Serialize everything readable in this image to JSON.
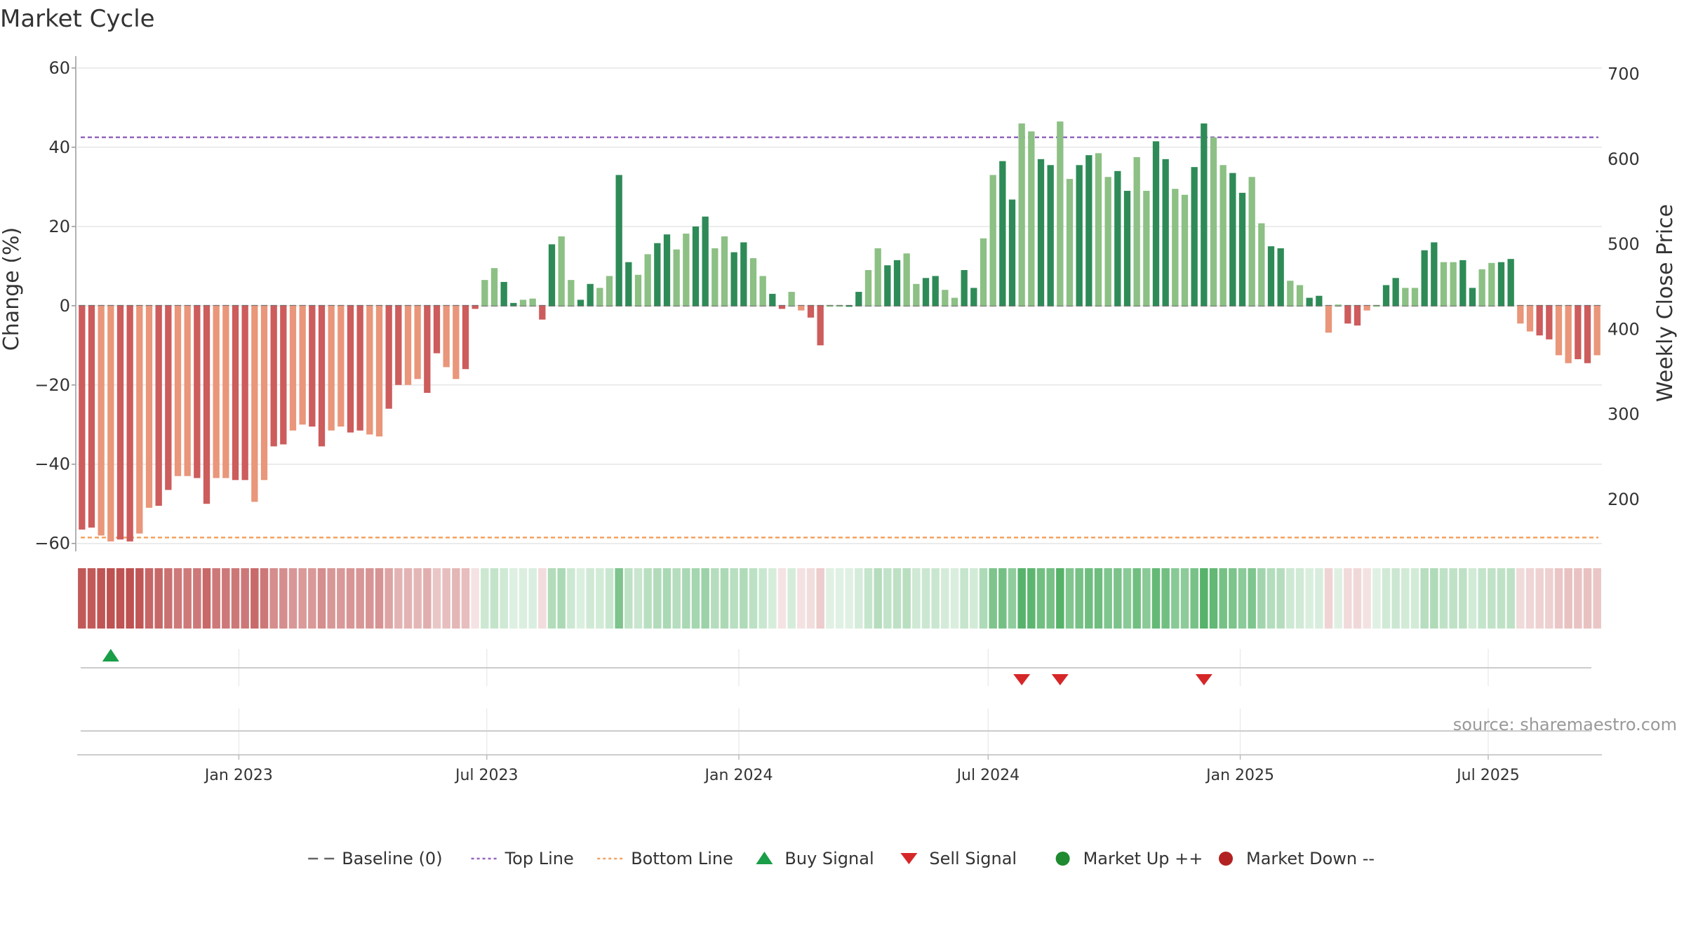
{
  "chart_data": {
    "type": "bar",
    "title": "Market Cycle",
    "ylabel": "Change (%)",
    "y2label": "Weekly Close Price",
    "ylim": [
      -62,
      63
    ],
    "y_ticks": [
      60,
      40,
      20,
      0,
      -20,
      -40,
      -60
    ],
    "y_tick_labels": [
      "60",
      "40",
      "20",
      "0",
      "−20",
      "−40",
      "−60"
    ],
    "y2_ticks": [
      700,
      600,
      500,
      400,
      300,
      200
    ],
    "y2_tick_labels": [
      "700",
      "600",
      "500",
      "400",
      "300",
      "200"
    ],
    "y2lim": [
      139,
      721
    ],
    "top_line": 42.5,
    "bottom_line": -58.5,
    "x_start": "2022-09-05",
    "x_end": "2025-09-22",
    "x_ticks": [
      {
        "date": "2023-01-01",
        "label": "Jan 2023"
      },
      {
        "date": "2023-07-01",
        "label": "Jul 2023"
      },
      {
        "date": "2024-01-01",
        "label": "Jan 2024"
      },
      {
        "date": "2024-07-01",
        "label": "Jul 2024"
      },
      {
        "date": "2025-01-01",
        "label": "Jan 2025"
      },
      {
        "date": "2025-07-01",
        "label": "Jul 2025"
      }
    ],
    "values": [
      -56.5,
      -56,
      -58,
      -59.5,
      -59,
      -59.5,
      -57.5,
      -51,
      -50.5,
      -46.5,
      -43,
      -43,
      -43.5,
      -50,
      -43.5,
      -43.5,
      -44,
      -44,
      -49.5,
      -44,
      -35.5,
      -35,
      -31.5,
      -30,
      -30.5,
      -35.5,
      -31.5,
      -30.5,
      -32,
      -31.5,
      -32.5,
      -33,
      -26,
      -20,
      -20,
      -18.5,
      -22,
      -12,
      -15.5,
      -18.5,
      -16,
      -0.8,
      6.5,
      9.5,
      6,
      0.7,
      1.5,
      1.8,
      -3.5,
      15.5,
      17.5,
      6.5,
      1.5,
      5.5,
      4.5,
      7.5,
      33,
      11,
      7.8,
      13,
      15.8,
      18,
      14.2,
      18.2,
      20,
      22.5,
      14.5,
      17.5,
      13.5,
      16,
      12,
      7.5,
      3,
      -0.8,
      3.5,
      -1.2,
      -3,
      -10,
      0,
      0,
      0,
      3.5,
      9,
      14.5,
      10.2,
      11.5,
      13.2,
      5.5,
      7,
      7.5,
      4,
      2,
      9,
      4.5,
      17,
      33,
      36.5,
      26.8,
      46,
      44,
      37,
      35.5,
      46.5,
      32,
      35.5,
      38,
      38.5,
      32.5,
      34,
      29,
      37.5,
      29,
      41.5,
      37,
      29.5,
      28,
      35,
      46,
      42.5,
      35.5,
      33.5,
      28.5,
      32.5,
      20.8,
      15,
      14.5,
      6.3,
      5.2,
      2,
      2.5,
      -6.8,
      0.3,
      -4.5,
      -5,
      -1.2,
      0,
      5.2,
      7,
      4.5,
      4.5,
      14,
      16,
      11,
      11,
      11.5,
      4.5,
      9.2,
      10.8,
      11,
      11.8,
      -4.5,
      -6.5,
      -7.5,
      -8.5,
      -12.5,
      -14.5,
      -13.5,
      -14.5,
      -12.5
    ],
    "x_labels": [
      "Jan 2023",
      "Jul 2023",
      "Jan 2024",
      "Jul 2024",
      "Jan 2025",
      "Jul 2025"
    ],
    "signals": {
      "buy_weeks": [
        3
      ],
      "sell_weeks": [
        98,
        102,
        117
      ]
    },
    "legend": [
      {
        "label": "Baseline (0)",
        "color": "#666666",
        "kind": "dash"
      },
      {
        "label": "Top Line",
        "color": "#9467bd",
        "kind": "dot"
      },
      {
        "label": "Bottom Line",
        "color": "#f4a261",
        "kind": "dot"
      },
      {
        "label": "Buy Signal",
        "color": "#1a9e48",
        "kind": "tri-up"
      },
      {
        "label": "Sell Signal",
        "color": "#d62728",
        "kind": "tri-down"
      },
      {
        "label": "Market Up ++",
        "color": "#1f8a30",
        "kind": "dot-marker"
      },
      {
        "label": "Market Down --",
        "color": "#b22222",
        "kind": "dot-marker"
      }
    ],
    "source": "source: sharemaestro.com",
    "colors": {
      "pos_strong": "#2e8b57",
      "pos_weak": "#8cc084",
      "neg_strong": "#cd5c5c",
      "neg_weak": "#e9967a",
      "top_line": "#9467bd",
      "bottom_line": "#f4a261",
      "baseline": "#666666",
      "grid": "#e6e6e6"
    }
  }
}
